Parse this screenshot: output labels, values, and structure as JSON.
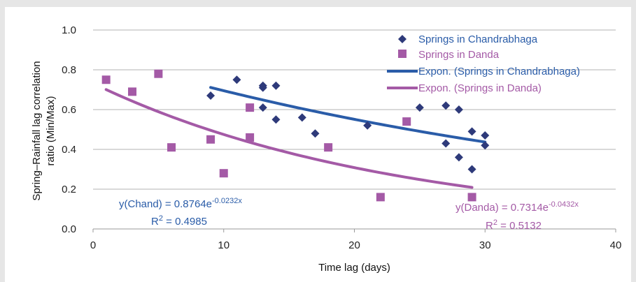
{
  "chart_data": {
    "type": "scatter",
    "xlabel": "Time lag (days)",
    "ylabel_lines": [
      "Spring–Rainfall lag correlation",
      "ratio (Min/Max)"
    ],
    "xlim": [
      0,
      40
    ],
    "ylim": [
      0,
      1.0
    ],
    "x_ticks": [
      0,
      10,
      20,
      30,
      40
    ],
    "y_ticks": [
      0.0,
      0.2,
      0.4,
      0.6,
      0.8,
      1.0
    ],
    "x_tick_labels": [
      "0",
      "10",
      "20",
      "30",
      "40"
    ],
    "y_tick_labels": [
      "0.0",
      "0.2",
      "0.4",
      "0.6",
      "0.8",
      "1.0"
    ],
    "grid": "horizontal",
    "legend_position": "top-right",
    "series": [
      {
        "name": "Springs in Chandrabhaga",
        "marker": "diamond",
        "color": "#2e3a7a",
        "points": [
          [
            9,
            0.67
          ],
          [
            11,
            0.75
          ],
          [
            13,
            0.72
          ],
          [
            13,
            0.71
          ],
          [
            13,
            0.61
          ],
          [
            14,
            0.72
          ],
          [
            14,
            0.55
          ],
          [
            16,
            0.56
          ],
          [
            17,
            0.48
          ],
          [
            21,
            0.52
          ],
          [
            25,
            0.61
          ],
          [
            27,
            0.62
          ],
          [
            27,
            0.43
          ],
          [
            28,
            0.6
          ],
          [
            28,
            0.36
          ],
          [
            29,
            0.49
          ],
          [
            29,
            0.3
          ],
          [
            30,
            0.47
          ],
          [
            30,
            0.42
          ]
        ]
      },
      {
        "name": "Springs in Danda",
        "marker": "square",
        "color": "#a45aa6",
        "points": [
          [
            1,
            0.75
          ],
          [
            3,
            0.69
          ],
          [
            5,
            0.78
          ],
          [
            6,
            0.41
          ],
          [
            9,
            0.45
          ],
          [
            10,
            0.28
          ],
          [
            12,
            0.61
          ],
          [
            12,
            0.46
          ],
          [
            18,
            0.41
          ],
          [
            22,
            0.16
          ],
          [
            24,
            0.54
          ],
          [
            29,
            0.16
          ]
        ]
      }
    ],
    "trendlines": [
      {
        "name": "Expon. (Springs in Chandrabhaga)",
        "color": "#2a5ca8",
        "a": 0.8764,
        "b": -0.0232,
        "x_range": [
          9,
          30
        ],
        "equation_main": "y(Chand) = 0.8764e",
        "equation_exp": "-0.0232x",
        "r2_text": "= 0.4985"
      },
      {
        "name": "Expon. (Springs in Danda)",
        "color": "#a45aa6",
        "a": 0.7314,
        "b": -0.0432,
        "x_range": [
          1,
          29
        ],
        "equation_main": "y(Danda) = 0.7314e",
        "equation_exp": "-0.0432x",
        "r2_text": "= 0.5132"
      }
    ]
  }
}
